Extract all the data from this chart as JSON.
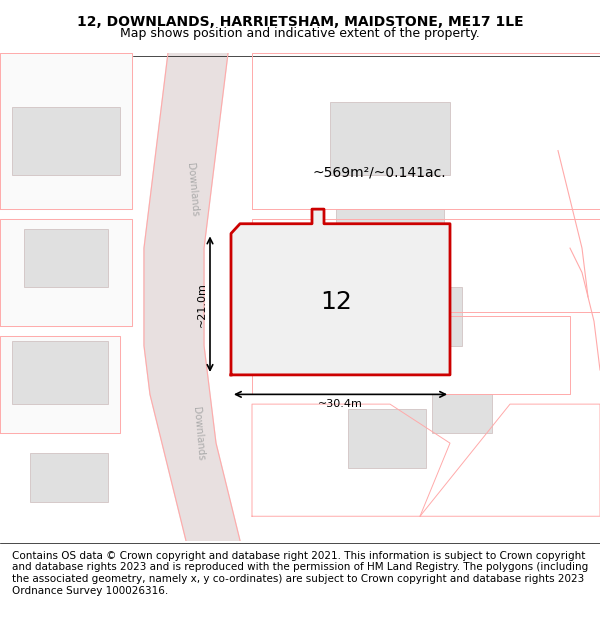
{
  "title": "12, DOWNLANDS, HARRIETSHAM, MAIDSTONE, ME17 1LE",
  "subtitle": "Map shows position and indicative extent of the property.",
  "footer": "Contains OS data © Crown copyright and database right 2021. This information is subject to Crown copyright and database rights 2023 and is reproduced with the permission of HM Land Registry. The polygons (including the associated geometry, namely x, y co-ordinates) are subject to Crown copyright and database rights 2023 Ordnance Survey 100026316.",
  "area_text": "~569m²/~0.141ac.",
  "property_number": "12",
  "dim_vertical": "~21.0m",
  "dim_horizontal": "~30.4m",
  "road_label_top": "Downlands",
  "road_label_bottom": "Downlands",
  "map_bg": "#ffffff",
  "plot_bg": "#f5f5f5",
  "road_color": "#e8e0e0",
  "border_color": "#ffaaaa",
  "highlight_color": "#cc0000",
  "building_fill": "#d8d8d8",
  "building_border": "#ccbbbb",
  "title_fontsize": 10,
  "subtitle_fontsize": 9,
  "footer_fontsize": 7.5
}
